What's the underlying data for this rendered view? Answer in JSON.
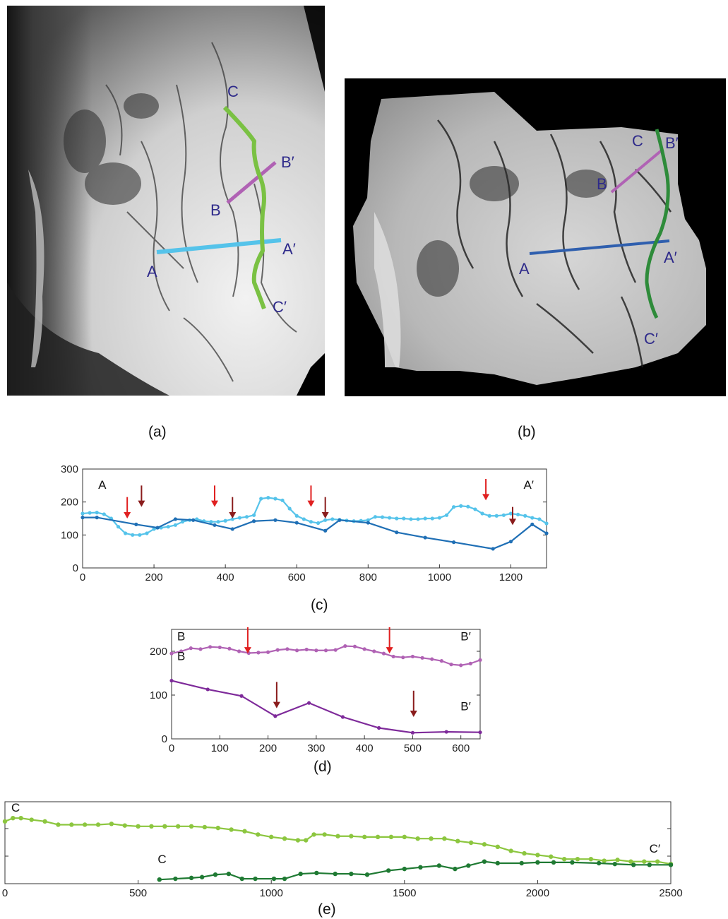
{
  "panels": {
    "a": {
      "caption": "(a)",
      "labels": [
        "C",
        "B′",
        "B",
        "A′",
        "A",
        "C′"
      ]
    },
    "b": {
      "caption": "(b)",
      "labels": [
        "C",
        "B′",
        "B",
        "A",
        "A′",
        "C′"
      ]
    }
  },
  "colors": {
    "light_blue": "#55c3ea",
    "dark_blue": "#1f6fb5",
    "light_purple": "#b062b4",
    "dark_purple": "#7e2a9a",
    "light_green": "#8cc63f",
    "dark_green": "#1f7a33",
    "red_arrow": "#e02020",
    "dark_red_arrow": "#8a1c1c"
  },
  "chart_data": [
    {
      "type": "line",
      "caption": "(c)",
      "xlim": [
        0,
        1300
      ],
      "ylim": [
        0,
        300
      ],
      "xticks": [
        0,
        200,
        400,
        600,
        800,
        1000,
        1200
      ],
      "yticks": [
        0,
        100,
        200,
        300
      ],
      "annotations": [
        {
          "text": "A",
          "x": 55,
          "y": 240
        },
        {
          "text": "A′",
          "x": 1250,
          "y": 240
        }
      ],
      "arrows_red": [
        {
          "x": 125,
          "y_top": 215,
          "y_tip": 150
        },
        {
          "x": 370,
          "y_top": 250,
          "y_tip": 185
        },
        {
          "x": 640,
          "y_top": 250,
          "y_tip": 185
        },
        {
          "x": 1130,
          "y_top": 270,
          "y_tip": 205
        }
      ],
      "arrows_dark_red": [
        {
          "x": 165,
          "y_top": 250,
          "y_tip": 185
        },
        {
          "x": 420,
          "y_top": 215,
          "y_tip": 150
        },
        {
          "x": 680,
          "y_top": 215,
          "y_tip": 150
        },
        {
          "x": 1205,
          "y_top": 185,
          "y_tip": 130
        }
      ],
      "series": [
        {
          "color": "#55c3ea",
          "points": [
            [
              0,
              165
            ],
            [
              20,
              167
            ],
            [
              40,
              168
            ],
            [
              60,
              163
            ],
            [
              80,
              150
            ],
            [
              100,
              125
            ],
            [
              120,
              105
            ],
            [
              140,
              100
            ],
            [
              160,
              100
            ],
            [
              180,
              105
            ],
            [
              200,
              118
            ],
            [
              220,
              122
            ],
            [
              240,
              125
            ],
            [
              260,
              130
            ],
            [
              280,
              140
            ],
            [
              300,
              145
            ],
            [
              320,
              148
            ],
            [
              340,
              142
            ],
            [
              360,
              140
            ],
            [
              380,
              140
            ],
            [
              400,
              143
            ],
            [
              420,
              148
            ],
            [
              440,
              152
            ],
            [
              460,
              155
            ],
            [
              480,
              160
            ],
            [
              500,
              210
            ],
            [
              520,
              213
            ],
            [
              540,
              210
            ],
            [
              560,
              205
            ],
            [
              580,
              180
            ],
            [
              600,
              158
            ],
            [
              620,
              148
            ],
            [
              640,
              140
            ],
            [
              660,
              136
            ],
            [
              680,
              145
            ],
            [
              700,
              148
            ],
            [
              720,
              146
            ],
            [
              740,
              144
            ],
            [
              760,
              142
            ],
            [
              780,
              143
            ],
            [
              800,
              145
            ],
            [
              820,
              155
            ],
            [
              840,
              154
            ],
            [
              860,
              152
            ],
            [
              880,
              150
            ],
            [
              900,
              150
            ],
            [
              920,
              148
            ],
            [
              940,
              148
            ],
            [
              960,
              150
            ],
            [
              980,
              150
            ],
            [
              1000,
              152
            ],
            [
              1020,
              160
            ],
            [
              1040,
              185
            ],
            [
              1060,
              188
            ],
            [
              1080,
              186
            ],
            [
              1100,
              178
            ],
            [
              1120,
              165
            ],
            [
              1140,
              158
            ],
            [
              1160,
              158
            ],
            [
              1180,
              160
            ],
            [
              1200,
              165
            ],
            [
              1220,
              162
            ],
            [
              1240,
              158
            ],
            [
              1260,
              152
            ],
            [
              1280,
              148
            ],
            [
              1300,
              135
            ]
          ]
        },
        {
          "color": "#1f6fb5",
          "points": [
            [
              0,
              153
            ],
            [
              40,
              153
            ],
            [
              150,
              132
            ],
            [
              210,
              122
            ],
            [
              260,
              148
            ],
            [
              310,
              145
            ],
            [
              370,
              130
            ],
            [
              420,
              118
            ],
            [
              480,
              142
            ],
            [
              540,
              145
            ],
            [
              600,
              137
            ],
            [
              680,
              113
            ],
            [
              720,
              145
            ],
            [
              800,
              137
            ],
            [
              880,
              108
            ],
            [
              960,
              92
            ],
            [
              1040,
              78
            ],
            [
              1150,
              58
            ],
            [
              1200,
              80
            ],
            [
              1260,
              132
            ],
            [
              1300,
              105
            ]
          ]
        }
      ]
    },
    {
      "type": "line",
      "caption": "(d)",
      "xlim": [
        0,
        640
      ],
      "ylim": [
        0,
        250
      ],
      "xticks": [
        0,
        100,
        200,
        300,
        400,
        500,
        600
      ],
      "yticks": [
        0,
        100,
        200
      ],
      "annotations": [
        {
          "text": "B",
          "x": 20,
          "y": 225
        },
        {
          "text": "B′",
          "x": 610,
          "y": 225
        },
        {
          "text": "B",
          "x": 20,
          "y": 180
        },
        {
          "text": "B′",
          "x": 610,
          "y": 65
        }
      ],
      "arrows_red": [
        {
          "x": 158,
          "y_top": 255,
          "y_tip": 195
        },
        {
          "x": 452,
          "y_top": 255,
          "y_tip": 195
        }
      ],
      "arrows_dark_red": [
        {
          "x": 218,
          "y_top": 130,
          "y_tip": 70
        },
        {
          "x": 502,
          "y_top": 110,
          "y_tip": 50
        }
      ],
      "series": [
        {
          "color": "#b062b4",
          "points": [
            [
              0,
              195
            ],
            [
              20,
              200
            ],
            [
              40,
              207
            ],
            [
              60,
              205
            ],
            [
              80,
              210
            ],
            [
              100,
              209
            ],
            [
              120,
              206
            ],
            [
              140,
              200
            ],
            [
              160,
              196
            ],
            [
              180,
              197
            ],
            [
              200,
              198
            ],
            [
              220,
              203
            ],
            [
              240,
              205
            ],
            [
              260,
              202
            ],
            [
              280,
              204
            ],
            [
              300,
              202
            ],
            [
              320,
              202
            ],
            [
              340,
              203
            ],
            [
              360,
              212
            ],
            [
              380,
              211
            ],
            [
              400,
              205
            ],
            [
              420,
              200
            ],
            [
              440,
              195
            ],
            [
              460,
              188
            ],
            [
              480,
              186
            ],
            [
              500,
              188
            ],
            [
              520,
              185
            ],
            [
              540,
              182
            ],
            [
              560,
              178
            ],
            [
              580,
              170
            ],
            [
              600,
              168
            ],
            [
              620,
              172
            ],
            [
              640,
              180
            ]
          ]
        },
        {
          "color": "#7e2a9a",
          "points": [
            [
              0,
              133
            ],
            [
              75,
              113
            ],
            [
              145,
              98
            ],
            [
              215,
              52
            ],
            [
              285,
              82
            ],
            [
              355,
              50
            ],
            [
              430,
              25
            ],
            [
              500,
              14
            ],
            [
              570,
              16
            ],
            [
              640,
              15
            ]
          ]
        }
      ]
    },
    {
      "type": "line",
      "caption": "(e)",
      "xlim": [
        0,
        2500
      ],
      "xticks": [
        0,
        500,
        1000,
        1500,
        2000,
        2500
      ],
      "annotations": [
        {
          "text": "C",
          "x": 40,
          "y": 0.88
        },
        {
          "text": "C′",
          "x": 2440,
          "y": 0.38
        },
        {
          "text": "C",
          "x": 590,
          "y": 0.25
        }
      ],
      "series": [
        {
          "color": "#8cc63f",
          "points": [
            [
              0,
              0.76
            ],
            [
              30,
              0.8
            ],
            [
              60,
              0.8
            ],
            [
              100,
              0.78
            ],
            [
              150,
              0.76
            ],
            [
              200,
              0.72
            ],
            [
              250,
              0.72
            ],
            [
              300,
              0.72
            ],
            [
              350,
              0.72
            ],
            [
              400,
              0.73
            ],
            [
              450,
              0.71
            ],
            [
              500,
              0.7
            ],
            [
              550,
              0.7
            ],
            [
              600,
              0.7
            ],
            [
              650,
              0.7
            ],
            [
              700,
              0.7
            ],
            [
              750,
              0.69
            ],
            [
              800,
              0.68
            ],
            [
              850,
              0.66
            ],
            [
              900,
              0.64
            ],
            [
              950,
              0.6
            ],
            [
              1000,
              0.57
            ],
            [
              1050,
              0.55
            ],
            [
              1100,
              0.53
            ],
            [
              1130,
              0.53
            ],
            [
              1160,
              0.6
            ],
            [
              1200,
              0.6
            ],
            [
              1250,
              0.58
            ],
            [
              1300,
              0.58
            ],
            [
              1350,
              0.57
            ],
            [
              1400,
              0.57
            ],
            [
              1450,
              0.57
            ],
            [
              1500,
              0.57
            ],
            [
              1550,
              0.55
            ],
            [
              1600,
              0.55
            ],
            [
              1650,
              0.55
            ],
            [
              1700,
              0.52
            ],
            [
              1750,
              0.5
            ],
            [
              1800,
              0.48
            ],
            [
              1850,
              0.45
            ],
            [
              1900,
              0.4
            ],
            [
              1950,
              0.37
            ],
            [
              2000,
              0.35
            ],
            [
              2050,
              0.33
            ],
            [
              2100,
              0.3
            ],
            [
              2150,
              0.3
            ],
            [
              2200,
              0.3
            ],
            [
              2250,
              0.28
            ],
            [
              2300,
              0.29
            ],
            [
              2350,
              0.27
            ],
            [
              2400,
              0.27
            ],
            [
              2450,
              0.27
            ],
            [
              2500,
              0.24
            ]
          ]
        },
        {
          "color": "#1f7a33",
          "points": [
            [
              580,
              0.05
            ],
            [
              640,
              0.06
            ],
            [
              700,
              0.07
            ],
            [
              740,
              0.08
            ],
            [
              790,
              0.11
            ],
            [
              840,
              0.12
            ],
            [
              890,
              0.06
            ],
            [
              940,
              0.06
            ],
            [
              1010,
              0.06
            ],
            [
              1050,
              0.06
            ],
            [
              1110,
              0.12
            ],
            [
              1170,
              0.13
            ],
            [
              1240,
              0.12
            ],
            [
              1300,
              0.12
            ],
            [
              1360,
              0.11
            ],
            [
              1440,
              0.16
            ],
            [
              1500,
              0.18
            ],
            [
              1560,
              0.2
            ],
            [
              1630,
              0.22
            ],
            [
              1690,
              0.18
            ],
            [
              1740,
              0.22
            ],
            [
              1800,
              0.27
            ],
            [
              1850,
              0.25
            ],
            [
              1940,
              0.25
            ],
            [
              2000,
              0.26
            ],
            [
              2060,
              0.26
            ],
            [
              2130,
              0.26
            ],
            [
              2230,
              0.25
            ],
            [
              2290,
              0.24
            ],
            [
              2360,
              0.23
            ],
            [
              2420,
              0.23
            ],
            [
              2500,
              0.23
            ]
          ]
        }
      ]
    }
  ]
}
